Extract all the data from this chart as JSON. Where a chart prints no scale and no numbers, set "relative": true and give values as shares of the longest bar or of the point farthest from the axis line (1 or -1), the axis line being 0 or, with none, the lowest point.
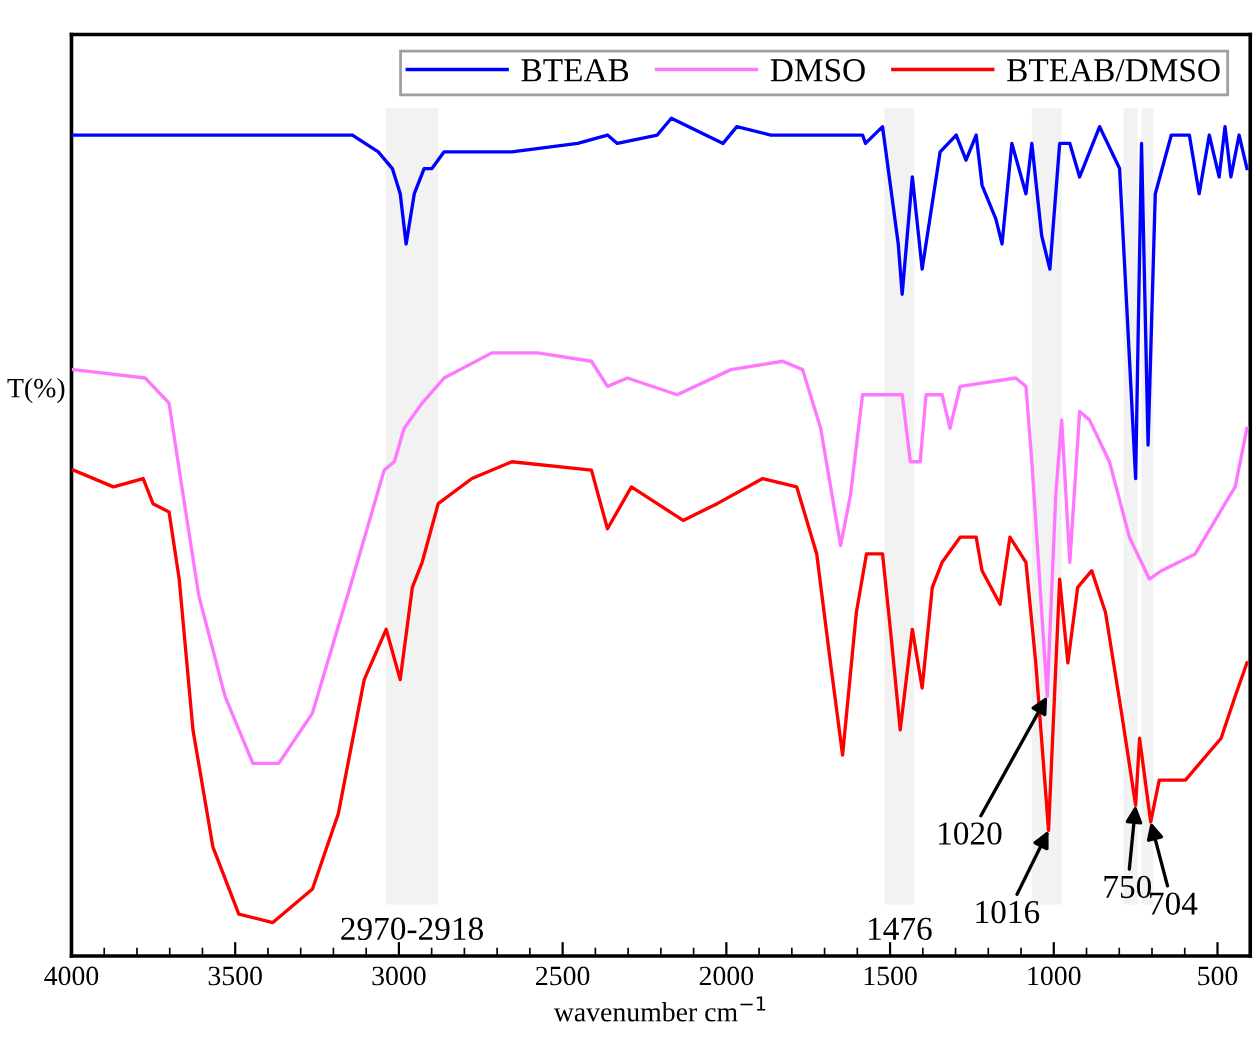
{
  "chart_data": {
    "type": "line",
    "relative": true,
    "xlabel": "wavenumber cm$^{−1}$",
    "ylabel": "T(%)",
    "xlim": [
      4000,
      400
    ],
    "xticks": [
      4000,
      3500,
      3000,
      2500,
      2000,
      1500,
      1000,
      500
    ],
    "legend": "top",
    "grid": false,
    "marker": "none",
    "line_style": "solid",
    "series": [
      {
        "name": "BTEAB",
        "color": "#0000ff",
        "x": [
          3994,
          3550,
          3428,
          3142,
          3063,
          3020,
          2996,
          2978,
          2953,
          2923,
          2899,
          2862,
          2716,
          2655,
          2454,
          2363,
          2333,
          2211,
          2168,
          2010,
          1968,
          1864,
          1584,
          1575,
          1523,
          1499,
          1475,
          1463,
          1432,
          1402,
          1347,
          1298,
          1268,
          1237,
          1219,
          1177,
          1158,
          1128,
          1085,
          1067,
          1037,
          1012,
          982,
          951,
          921,
          860,
          799,
          750,
          732,
          712,
          690,
          641,
          586,
          556,
          525,
          495,
          477,
          459,
          434,
          410
        ],
        "values": [
          0.98,
          0.98,
          0.98,
          0.98,
          0.96,
          0.94,
          0.91,
          0.85,
          0.91,
          0.94,
          0.94,
          0.96,
          0.96,
          0.96,
          0.97,
          0.98,
          0.97,
          0.98,
          1.0,
          0.97,
          0.99,
          0.98,
          0.98,
          0.97,
          0.99,
          0.92,
          0.85,
          0.79,
          0.93,
          0.82,
          0.96,
          0.98,
          0.95,
          0.98,
          0.92,
          0.88,
          0.85,
          0.97,
          0.91,
          0.97,
          0.86,
          0.82,
          0.97,
          0.97,
          0.93,
          0.99,
          0.94,
          0.57,
          0.97,
          0.61,
          0.91,
          0.98,
          0.98,
          0.91,
          0.98,
          0.93,
          0.99,
          0.93,
          0.98,
          0.94
        ]
      },
      {
        "name": "DMSO",
        "color": "#ff77ff",
        "x": [
          3994,
          3775,
          3702,
          3659,
          3611,
          3531,
          3446,
          3367,
          3264,
          3142,
          3045,
          3014,
          2984,
          2929,
          2862,
          2716,
          2576,
          2412,
          2363,
          2302,
          2150,
          1986,
          1828,
          1767,
          1712,
          1651,
          1621,
          1584,
          1523,
          1463,
          1438,
          1408,
          1390,
          1341,
          1317,
          1286,
          1116,
          1085,
          1067,
          1020,
          994,
          976,
          951,
          921,
          891,
          830,
          769,
          708,
          671,
          568,
          477,
          446,
          410
        ],
        "values": [
          0.7,
          0.69,
          0.66,
          0.55,
          0.43,
          0.31,
          0.23,
          0.23,
          0.29,
          0.45,
          0.58,
          0.59,
          0.63,
          0.66,
          0.69,
          0.72,
          0.72,
          0.71,
          0.68,
          0.69,
          0.67,
          0.7,
          0.71,
          0.7,
          0.63,
          0.49,
          0.55,
          0.67,
          0.67,
          0.67,
          0.59,
          0.59,
          0.67,
          0.67,
          0.63,
          0.68,
          0.69,
          0.68,
          0.59,
          0.31,
          0.55,
          0.64,
          0.47,
          0.65,
          0.64,
          0.59,
          0.5,
          0.45,
          0.46,
          0.48,
          0.54,
          0.56,
          0.63
        ]
      },
      {
        "name": "BTEAB/DMSO",
        "color": "#ff0000",
        "x": [
          3994,
          3872,
          3781,
          3751,
          3702,
          3671,
          3629,
          3568,
          3489,
          3385,
          3264,
          3185,
          3106,
          3039,
          2996,
          2959,
          2929,
          2880,
          2777,
          2655,
          2412,
          2363,
          2290,
          2211,
          2132,
          2028,
          1889,
          1785,
          1724,
          1682,
          1645,
          1603,
          1572,
          1523,
          1499,
          1469,
          1432,
          1402,
          1371,
          1341,
          1286,
          1237,
          1219,
          1164,
          1134,
          1085,
          1055,
          1016,
          982,
          957,
          927,
          884,
          842,
          793,
          750,
          738,
          704,
          678,
          598,
          489,
          446,
          410
        ],
        "values": [
          0.58,
          0.56,
          0.57,
          0.54,
          0.53,
          0.45,
          0.27,
          0.13,
          0.05,
          0.04,
          0.08,
          0.17,
          0.33,
          0.39,
          0.33,
          0.44,
          0.47,
          0.54,
          0.57,
          0.59,
          0.58,
          0.51,
          0.56,
          0.54,
          0.52,
          0.54,
          0.57,
          0.56,
          0.48,
          0.35,
          0.24,
          0.41,
          0.48,
          0.48,
          0.39,
          0.27,
          0.39,
          0.32,
          0.44,
          0.47,
          0.5,
          0.5,
          0.46,
          0.42,
          0.5,
          0.47,
          0.35,
          0.15,
          0.45,
          0.35,
          0.44,
          0.46,
          0.41,
          0.29,
          0.18,
          0.26,
          0.16,
          0.21,
          0.21,
          0.26,
          0.31,
          0.35
        ]
      }
    ],
    "bands": [
      {
        "axis": "x",
        "from": 3040,
        "to": 2880,
        "label": "2970-2918",
        "color": "#f2f2f2"
      },
      {
        "axis": "x",
        "from": 1517,
        "to": 1426,
        "label": "1476",
        "color": "#f2f2f2"
      },
      {
        "axis": "x",
        "from": 1067,
        "to": 976,
        "color": "#f2f2f2"
      },
      {
        "axis": "x",
        "from": 787,
        "to": 744,
        "color": "#f2f2f2"
      },
      {
        "axis": "x",
        "from": 732,
        "to": 696,
        "color": "#f2f2f2"
      }
    ],
    "annotations": [
      {
        "text": "1020",
        "x": 1020,
        "y": 0.31
      },
      {
        "text": "1016",
        "x": 1016,
        "y": 0.15
      },
      {
        "text": "750",
        "x": 750,
        "y": 0.18
      },
      {
        "text": "704",
        "x": 704,
        "y": 0.16
      }
    ]
  }
}
